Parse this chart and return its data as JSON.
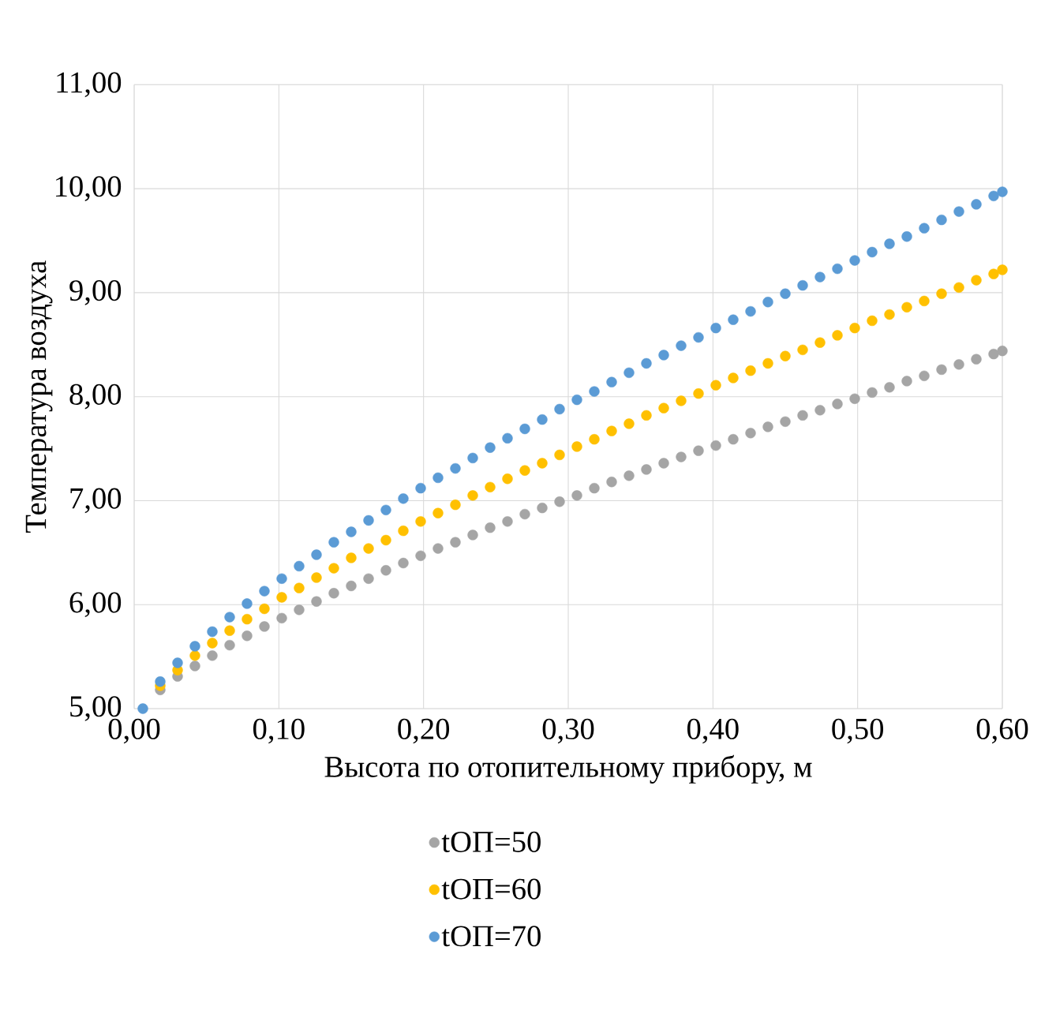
{
  "chart_data": {
    "type": "scatter",
    "xlabel": "Высота по отопительному прибору, м",
    "ylabel": "Температура воздуха",
    "x": [
      0.006,
      0.018,
      0.03,
      0.042,
      0.054,
      0.066,
      0.078,
      0.09,
      0.102,
      0.114,
      0.126,
      0.138,
      0.15,
      0.162,
      0.174,
      0.186,
      0.198,
      0.21,
      0.222,
      0.234,
      0.246,
      0.258,
      0.27,
      0.282,
      0.294,
      0.306,
      0.318,
      0.33,
      0.342,
      0.354,
      0.366,
      0.378,
      0.39,
      0.402,
      0.414,
      0.426,
      0.438,
      0.45,
      0.462,
      0.474,
      0.486,
      0.498,
      0.51,
      0.522,
      0.534,
      0.546,
      0.558,
      0.57,
      0.582,
      0.594,
      0.6
    ],
    "series": [
      {
        "name": "tОП=50",
        "color": "#a5a5a5",
        "values": [
          null,
          5.18,
          5.31,
          5.41,
          5.51,
          5.61,
          5.7,
          5.79,
          5.87,
          5.95,
          6.03,
          6.11,
          6.18,
          6.25,
          6.33,
          6.4,
          6.47,
          6.54,
          6.6,
          6.67,
          6.74,
          6.8,
          6.87,
          6.93,
          6.99,
          7.05,
          7.12,
          7.18,
          7.24,
          7.3,
          7.36,
          7.42,
          7.48,
          7.53,
          7.59,
          7.65,
          7.71,
          7.76,
          7.82,
          7.87,
          7.93,
          7.98,
          8.04,
          8.09,
          8.15,
          8.2,
          8.26,
          8.31,
          8.36,
          8.41,
          8.44
        ]
      },
      {
        "name": "tОП=60",
        "color": "#ffc000",
        "values": [
          null,
          5.22,
          5.37,
          5.51,
          5.63,
          5.75,
          5.86,
          5.96,
          6.07,
          6.16,
          6.26,
          6.35,
          6.45,
          6.54,
          6.62,
          6.71,
          6.8,
          6.88,
          6.96,
          7.05,
          7.13,
          7.21,
          7.29,
          7.36,
          7.44,
          7.52,
          7.59,
          7.67,
          7.74,
          7.82,
          7.89,
          7.96,
          8.03,
          8.11,
          8.18,
          8.25,
          8.32,
          8.39,
          8.45,
          8.52,
          8.59,
          8.66,
          8.73,
          8.79,
          8.86,
          8.92,
          8.99,
          9.05,
          9.12,
          9.18,
          9.22
        ]
      },
      {
        "name": "tОП=70",
        "color": "#5b9bd5",
        "values": [
          5.0,
          5.26,
          5.44,
          5.6,
          5.74,
          5.88,
          6.01,
          6.13,
          6.25,
          6.37,
          6.48,
          6.6,
          6.7,
          6.81,
          6.91,
          7.02,
          7.12,
          7.22,
          7.31,
          7.41,
          7.51,
          7.6,
          7.69,
          7.78,
          7.88,
          7.97,
          8.05,
          8.14,
          8.23,
          8.32,
          8.4,
          8.49,
          8.57,
          8.66,
          8.74,
          8.82,
          8.91,
          8.99,
          9.07,
          9.15,
          9.23,
          9.31,
          9.39,
          9.47,
          9.54,
          9.62,
          9.7,
          9.78,
          9.85,
          9.93,
          9.97
        ]
      }
    ],
    "xlim": [
      0,
      0.6
    ],
    "ylim": [
      5,
      11
    ],
    "xticks": [
      {
        "value": 0,
        "label": "0,00"
      },
      {
        "value": 0.1,
        "label": "0,10"
      },
      {
        "value": 0.2,
        "label": "0,20"
      },
      {
        "value": 0.3,
        "label": "0,30"
      },
      {
        "value": 0.4,
        "label": "0,40"
      },
      {
        "value": 0.5,
        "label": "0,50"
      },
      {
        "value": 0.6,
        "label": "0,60"
      }
    ],
    "yticks": [
      {
        "value": 5,
        "label": "5,00"
      },
      {
        "value": 6,
        "label": "6,00"
      },
      {
        "value": 7,
        "label": "7,00"
      },
      {
        "value": 8,
        "label": "8,00"
      },
      {
        "value": 9,
        "label": "9,00"
      },
      {
        "value": 10,
        "label": "10,00"
      },
      {
        "value": 11,
        "label": "11,00"
      }
    ],
    "grid": true,
    "legend": "bottom",
    "marker": "circle"
  }
}
